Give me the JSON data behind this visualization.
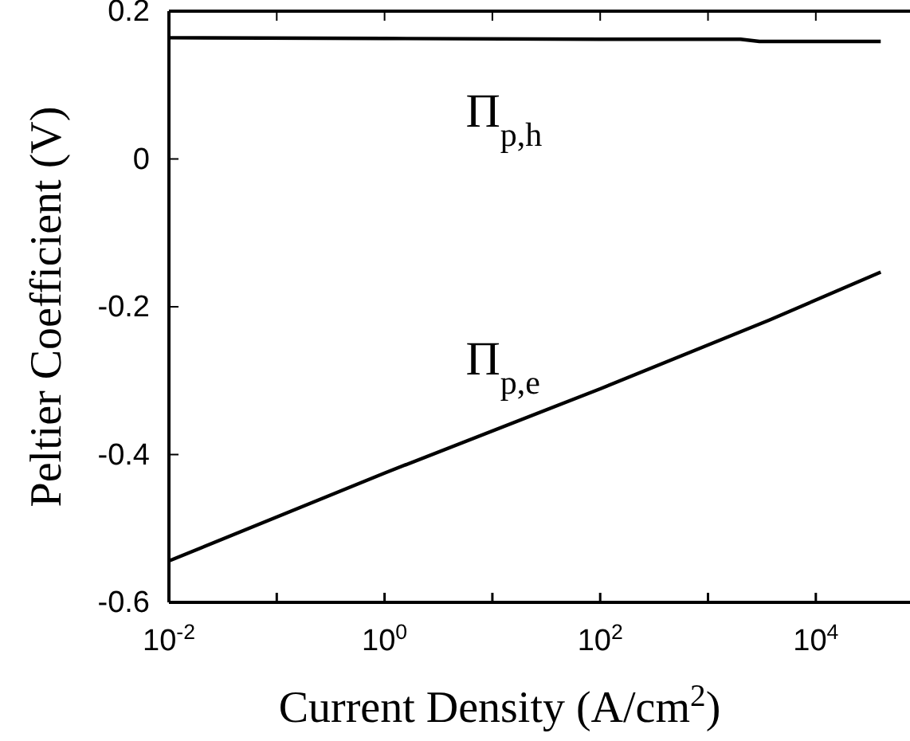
{
  "chart_data": {
    "type": "line",
    "xlabel": "Current Density (A/cm$^{2}$)",
    "ylabel": "Peltier Coefficient (V)",
    "log": "x",
    "xlim": [
      0.01,
      80000
    ],
    "ylim": [
      -0.6,
      0.2
    ],
    "xticks": [
      {
        "value": 0.01,
        "label": "10$^{-2}$"
      },
      {
        "value": 0.1,
        "label": null
      },
      {
        "value": 1,
        "label": "10$^{0}$"
      },
      {
        "value": 10,
        "label": null
      },
      {
        "value": 100,
        "label": "10$^{2}$"
      },
      {
        "value": 1000,
        "label": null
      },
      {
        "value": 10000,
        "label": "10$^{4}$"
      }
    ],
    "yticks": [
      -0.6,
      -0.4,
      -0.2,
      0,
      0.2
    ],
    "grid": false,
    "legend": false,
    "marker": "none",
    "line_style": "solid",
    "series": [
      {
        "name": "Π$_{p,h}$",
        "color": "#000000",
        "x": [
          0.01,
          1,
          100,
          2000,
          3000,
          40000
        ],
        "values": [
          0.164,
          0.163,
          0.162,
          0.162,
          0.159,
          0.159
        ]
      },
      {
        "name": "Π$_{p,e}$",
        "color": "#000000",
        "x": [
          0.01,
          1,
          100,
          3700,
          40000
        ],
        "values": [
          -0.544,
          -0.425,
          -0.311,
          -0.218,
          -0.153
        ]
      }
    ]
  }
}
